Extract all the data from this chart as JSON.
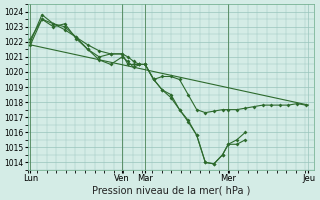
{
  "xlabel": "Pression niveau de la mer( hPa )",
  "bg_color": "#d4ece6",
  "grid_color": "#99c4bc",
  "line_color": "#2d6a2d",
  "ylim": [
    1013.5,
    1024.5
  ],
  "yticks": [
    1014,
    1015,
    1016,
    1017,
    1018,
    1019,
    1020,
    1021,
    1022,
    1023,
    1024
  ],
  "xlim": [
    0,
    5.0
  ],
  "xtick_pos": [
    0.05,
    1.65,
    2.05,
    3.5,
    4.9
  ],
  "xtick_labels": [
    "Lun",
    "Ven",
    "Mar",
    "Mer",
    "Jeu"
  ],
  "vline_pos": [
    0.05,
    1.65,
    2.05,
    3.5
  ],
  "series1_x": [
    0.05,
    4.9
  ],
  "series1_y": [
    1021.8,
    1017.8
  ],
  "series2_x": [
    0.05,
    0.25,
    0.45,
    0.65,
    0.85,
    1.05,
    1.25,
    1.45,
    1.65,
    1.75,
    1.85,
    1.95,
    2.05,
    2.2,
    2.35,
    2.5,
    2.65,
    2.8,
    2.95,
    3.1,
    3.25,
    3.4,
    3.5,
    3.65,
    3.8,
    3.95,
    4.1,
    4.25,
    4.4,
    4.55,
    4.7,
    4.85
  ],
  "series2_y": [
    1022.2,
    1023.5,
    1023.2,
    1022.8,
    1022.3,
    1021.8,
    1021.4,
    1021.2,
    1021.2,
    1021.0,
    1020.7,
    1020.5,
    1020.5,
    1019.5,
    1019.7,
    1019.7,
    1019.5,
    1018.5,
    1017.5,
    1017.3,
    1017.4,
    1017.5,
    1017.5,
    1017.5,
    1017.6,
    1017.7,
    1017.8,
    1017.8,
    1017.8,
    1017.8,
    1017.9,
    1017.8
  ],
  "series3_x": [
    0.05,
    0.25,
    0.45,
    0.65,
    0.85,
    1.05,
    1.25,
    1.45,
    1.65,
    1.75,
    1.85,
    1.95,
    2.05,
    2.2,
    2.35,
    2.5,
    2.65,
    2.8,
    2.95,
    3.1,
    3.25,
    3.4,
    3.5,
    3.65,
    3.8
  ],
  "series3_y": [
    1022.0,
    1023.8,
    1023.2,
    1023.0,
    1022.3,
    1021.5,
    1020.8,
    1020.5,
    1021.0,
    1020.7,
    1020.3,
    1020.5,
    1020.5,
    1019.5,
    1018.8,
    1018.5,
    1017.5,
    1016.7,
    1015.8,
    1014.0,
    1013.9,
    1014.5,
    1015.2,
    1015.2,
    1015.5
  ],
  "series4_x": [
    0.05,
    0.25,
    0.45,
    0.65,
    0.85,
    1.05,
    1.25,
    1.45,
    1.65,
    1.75,
    1.85,
    1.95,
    2.05,
    2.2,
    2.35,
    2.5,
    2.65,
    2.8,
    2.95,
    3.1,
    3.25,
    3.4,
    3.5,
    3.65,
    3.8
  ],
  "series4_y": [
    1021.8,
    1023.5,
    1023.0,
    1023.2,
    1022.2,
    1021.5,
    1021.0,
    1021.2,
    1021.2,
    1020.5,
    1020.5,
    1020.5,
    1020.5,
    1019.5,
    1018.8,
    1018.3,
    1017.5,
    1016.8,
    1015.8,
    1014.0,
    1013.9,
    1014.5,
    1015.2,
    1015.5,
    1016.0
  ]
}
